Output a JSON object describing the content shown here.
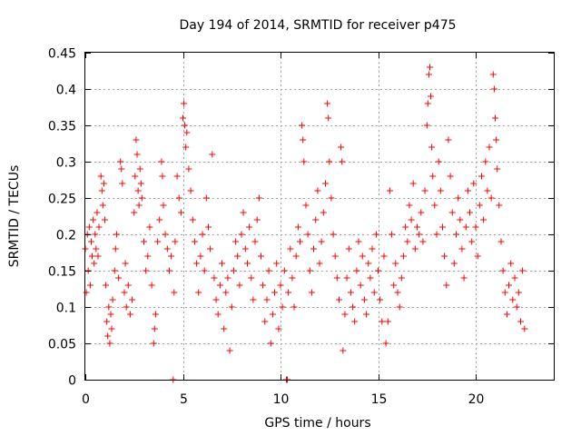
{
  "chart_data": {
    "type": "scatter",
    "title": "Day 194 of 2014, SRMTID for receiver p475",
    "xlabel": "GPS time / hours",
    "ylabel": "SRMTID / TECUs",
    "xlim": [
      0,
      24
    ],
    "ylim": [
      0,
      0.45
    ],
    "xticks": [
      0,
      5,
      10,
      15,
      20
    ],
    "xtick_labels": [
      "0",
      "5",
      "10",
      "15",
      "20"
    ],
    "yticks": [
      0,
      0.05,
      0.1,
      0.15,
      0.2,
      0.25,
      0.3,
      0.35,
      0.4,
      0.45
    ],
    "ytick_labels": [
      "0",
      "0.05",
      "0.1",
      "0.15",
      "0.2",
      "0.25",
      "0.3",
      "0.35",
      "0.4",
      "0.45"
    ],
    "grid": true,
    "marker": "plus",
    "color": "#ff0000",
    "series": [
      {
        "name": "SRMTID",
        "points": [
          [
            0.0,
            0.18
          ],
          [
            0.05,
            0.12
          ],
          [
            0.1,
            0.2
          ],
          [
            0.15,
            0.15
          ],
          [
            0.2,
            0.21
          ],
          [
            0.25,
            0.13
          ],
          [
            0.3,
            0.19
          ],
          [
            0.35,
            0.17
          ],
          [
            0.4,
            0.22
          ],
          [
            0.45,
            0.16
          ],
          [
            0.5,
            0.2
          ],
          [
            0.55,
            0.18
          ],
          [
            0.6,
            0.23
          ],
          [
            0.65,
            0.17
          ],
          [
            0.7,
            0.21
          ],
          [
            0.8,
            0.28
          ],
          [
            0.85,
            0.26
          ],
          [
            0.9,
            0.24
          ],
          [
            0.95,
            0.27
          ],
          [
            1.0,
            0.22
          ],
          [
            1.05,
            0.13
          ],
          [
            1.1,
            0.08
          ],
          [
            1.15,
            0.06
          ],
          [
            1.2,
            0.1
          ],
          [
            1.25,
            0.05
          ],
          [
            1.3,
            0.09
          ],
          [
            1.35,
            0.07
          ],
          [
            1.4,
            0.11
          ],
          [
            1.5,
            0.15
          ],
          [
            1.55,
            0.18
          ],
          [
            1.6,
            0.2
          ],
          [
            1.7,
            0.14
          ],
          [
            1.8,
            0.3
          ],
          [
            1.85,
            0.29
          ],
          [
            1.9,
            0.27
          ],
          [
            2.0,
            0.12
          ],
          [
            2.05,
            0.16
          ],
          [
            2.1,
            0.1
          ],
          [
            2.2,
            0.13
          ],
          [
            2.3,
            0.09
          ],
          [
            2.4,
            0.11
          ],
          [
            2.5,
            0.23
          ],
          [
            2.55,
            0.28
          ],
          [
            2.6,
            0.33
          ],
          [
            2.65,
            0.31
          ],
          [
            2.7,
            0.26
          ],
          [
            2.75,
            0.24
          ],
          [
            2.8,
            0.29
          ],
          [
            2.85,
            0.27
          ],
          [
            2.9,
            0.25
          ],
          [
            3.0,
            0.19
          ],
          [
            3.1,
            0.15
          ],
          [
            3.2,
            0.17
          ],
          [
            3.3,
            0.21
          ],
          [
            3.4,
            0.13
          ],
          [
            3.5,
            0.05
          ],
          [
            3.55,
            0.07
          ],
          [
            3.6,
            0.09
          ],
          [
            3.7,
            0.19
          ],
          [
            3.8,
            0.22
          ],
          [
            3.9,
            0.3
          ],
          [
            3.95,
            0.28
          ],
          [
            4.0,
            0.24
          ],
          [
            4.1,
            0.2
          ],
          [
            4.2,
            0.18
          ],
          [
            4.3,
            0.15
          ],
          [
            4.4,
            0.17
          ],
          [
            4.5,
            0.0
          ],
          [
            4.55,
            0.12
          ],
          [
            4.6,
            0.19
          ],
          [
            4.7,
            0.28
          ],
          [
            4.8,
            0.25
          ],
          [
            4.9,
            0.23
          ],
          [
            5.0,
            0.36
          ],
          [
            5.05,
            0.38
          ],
          [
            5.1,
            0.35
          ],
          [
            5.15,
            0.32
          ],
          [
            5.2,
            0.34
          ],
          [
            5.3,
            0.29
          ],
          [
            5.4,
            0.26
          ],
          [
            5.5,
            0.22
          ],
          [
            5.6,
            0.19
          ],
          [
            5.7,
            0.16
          ],
          [
            5.8,
            0.12
          ],
          [
            5.9,
            0.17
          ],
          [
            6.0,
            0.2
          ],
          [
            6.1,
            0.15
          ],
          [
            6.2,
            0.25
          ],
          [
            6.3,
            0.21
          ],
          [
            6.4,
            0.18
          ],
          [
            6.5,
            0.31
          ],
          [
            6.6,
            0.14
          ],
          [
            6.7,
            0.11
          ],
          [
            6.8,
            0.09
          ],
          [
            6.9,
            0.13
          ],
          [
            7.0,
            0.16
          ],
          [
            7.1,
            0.07
          ],
          [
            7.2,
            0.12
          ],
          [
            7.3,
            0.14
          ],
          [
            7.4,
            0.04
          ],
          [
            7.5,
            0.1
          ],
          [
            7.6,
            0.15
          ],
          [
            7.7,
            0.19
          ],
          [
            7.8,
            0.17
          ],
          [
            7.9,
            0.13
          ],
          [
            8.0,
            0.2
          ],
          [
            8.1,
            0.23
          ],
          [
            8.2,
            0.18
          ],
          [
            8.3,
            0.16
          ],
          [
            8.4,
            0.21
          ],
          [
            8.5,
            0.14
          ],
          [
            8.6,
            0.11
          ],
          [
            8.7,
            0.19
          ],
          [
            8.8,
            0.22
          ],
          [
            8.9,
            0.25
          ],
          [
            9.0,
            0.17
          ],
          [
            9.1,
            0.13
          ],
          [
            9.2,
            0.08
          ],
          [
            9.3,
            0.11
          ],
          [
            9.4,
            0.15
          ],
          [
            9.5,
            0.05
          ],
          [
            9.6,
            0.09
          ],
          [
            9.7,
            0.12
          ],
          [
            9.8,
            0.16
          ],
          [
            9.9,
            0.07
          ],
          [
            10.0,
            0.13
          ],
          [
            10.1,
            0.1
          ],
          [
            10.2,
            0.15
          ],
          [
            10.3,
            0.0
          ],
          [
            10.35,
            0.0
          ],
          [
            10.4,
            0.12
          ],
          [
            10.5,
            0.18
          ],
          [
            10.6,
            0.14
          ],
          [
            10.7,
            0.1
          ],
          [
            10.8,
            0.17
          ],
          [
            10.9,
            0.21
          ],
          [
            11.0,
            0.19
          ],
          [
            11.1,
            0.35
          ],
          [
            11.15,
            0.33
          ],
          [
            11.2,
            0.3
          ],
          [
            11.3,
            0.24
          ],
          [
            11.4,
            0.2
          ],
          [
            11.5,
            0.15
          ],
          [
            11.6,
            0.12
          ],
          [
            11.7,
            0.18
          ],
          [
            11.8,
            0.22
          ],
          [
            11.9,
            0.26
          ],
          [
            12.0,
            0.16
          ],
          [
            12.1,
            0.19
          ],
          [
            12.2,
            0.23
          ],
          [
            12.3,
            0.27
          ],
          [
            12.4,
            0.38
          ],
          [
            12.45,
            0.36
          ],
          [
            12.5,
            0.3
          ],
          [
            12.6,
            0.25
          ],
          [
            12.7,
            0.2
          ],
          [
            12.8,
            0.17
          ],
          [
            12.9,
            0.14
          ],
          [
            13.0,
            0.11
          ],
          [
            13.1,
            0.32
          ],
          [
            13.15,
            0.3
          ],
          [
            13.2,
            0.04
          ],
          [
            13.3,
            0.09
          ],
          [
            13.4,
            0.14
          ],
          [
            13.5,
            0.18
          ],
          [
            13.6,
            0.12
          ],
          [
            13.7,
            0.1
          ],
          [
            13.8,
            0.08
          ],
          [
            13.9,
            0.15
          ],
          [
            14.0,
            0.19
          ],
          [
            14.1,
            0.13
          ],
          [
            14.2,
            0.17
          ],
          [
            14.3,
            0.11
          ],
          [
            14.4,
            0.09
          ],
          [
            14.5,
            0.16
          ],
          [
            14.6,
            0.14
          ],
          [
            14.7,
            0.18
          ],
          [
            14.8,
            0.12
          ],
          [
            14.9,
            0.2
          ],
          [
            15.0,
            0.15
          ],
          [
            15.1,
            0.11
          ],
          [
            15.2,
            0.08
          ],
          [
            15.3,
            0.17
          ],
          [
            15.4,
            0.05
          ],
          [
            15.5,
            0.08
          ],
          [
            15.6,
            0.26
          ],
          [
            15.7,
            0.2
          ],
          [
            15.8,
            0.13
          ],
          [
            15.9,
            0.16
          ],
          [
            16.0,
            0.12
          ],
          [
            16.1,
            0.1
          ],
          [
            16.2,
            0.14
          ],
          [
            16.3,
            0.17
          ],
          [
            16.4,
            0.21
          ],
          [
            16.5,
            0.19
          ],
          [
            16.6,
            0.24
          ],
          [
            16.7,
            0.22
          ],
          [
            16.8,
            0.27
          ],
          [
            16.9,
            0.18
          ],
          [
            17.0,
            0.21
          ],
          [
            17.1,
            0.2
          ],
          [
            17.2,
            0.23
          ],
          [
            17.3,
            0.19
          ],
          [
            17.4,
            0.26
          ],
          [
            17.5,
            0.35
          ],
          [
            17.55,
            0.38
          ],
          [
            17.6,
            0.42
          ],
          [
            17.65,
            0.43
          ],
          [
            17.7,
            0.39
          ],
          [
            17.75,
            0.32
          ],
          [
            17.8,
            0.28
          ],
          [
            17.9,
            0.24
          ],
          [
            18.0,
            0.2
          ],
          [
            18.1,
            0.3
          ],
          [
            18.2,
            0.26
          ],
          [
            18.3,
            0.21
          ],
          [
            18.4,
            0.17
          ],
          [
            18.5,
            0.13
          ],
          [
            18.6,
            0.33
          ],
          [
            18.7,
            0.28
          ],
          [
            18.8,
            0.23
          ],
          [
            18.9,
            0.16
          ],
          [
            19.0,
            0.2
          ],
          [
            19.1,
            0.25
          ],
          [
            19.2,
            0.22
          ],
          [
            19.3,
            0.18
          ],
          [
            19.4,
            0.14
          ],
          [
            19.5,
            0.21
          ],
          [
            19.6,
            0.26
          ],
          [
            19.7,
            0.23
          ],
          [
            19.8,
            0.19
          ],
          [
            19.9,
            0.27
          ],
          [
            20.0,
            0.21
          ],
          [
            20.1,
            0.17
          ],
          [
            20.2,
            0.24
          ],
          [
            20.3,
            0.28
          ],
          [
            20.4,
            0.22
          ],
          [
            20.5,
            0.3
          ],
          [
            20.6,
            0.26
          ],
          [
            20.7,
            0.32
          ],
          [
            20.8,
            0.25
          ],
          [
            20.9,
            0.42
          ],
          [
            20.95,
            0.4
          ],
          [
            21.0,
            0.36
          ],
          [
            21.05,
            0.33
          ],
          [
            21.1,
            0.29
          ],
          [
            21.2,
            0.24
          ],
          [
            21.3,
            0.19
          ],
          [
            21.4,
            0.15
          ],
          [
            21.5,
            0.12
          ],
          [
            21.6,
            0.09
          ],
          [
            21.7,
            0.13
          ],
          [
            21.8,
            0.16
          ],
          [
            21.9,
            0.11
          ],
          [
            22.0,
            0.14
          ],
          [
            22.1,
            0.1
          ],
          [
            22.2,
            0.12
          ],
          [
            22.3,
            0.08
          ],
          [
            22.4,
            0.15
          ],
          [
            22.5,
            0.07
          ]
        ]
      }
    ]
  }
}
